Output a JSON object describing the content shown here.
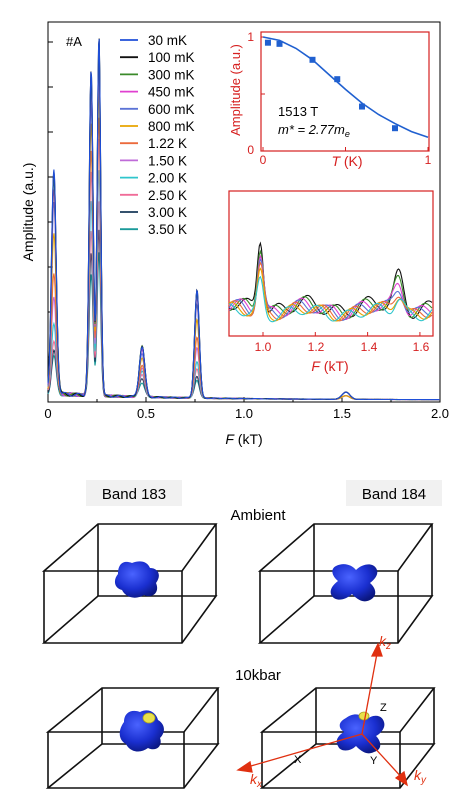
{
  "main_panel": {
    "sample_label": "#A",
    "xlabel_italic": "F",
    "xlabel_unit": " (kT)",
    "ylabel": "Amplitude (a.u.)",
    "x_ticks": [
      "0",
      "0.5",
      "1.0",
      "1.5",
      "2.0"
    ],
    "legend": [
      {
        "label": "30 mK",
        "color": "#1f4fd8"
      },
      {
        "label": "100 mK",
        "color": "#111111"
      },
      {
        "label": "300 mK",
        "color": "#3a8a2a"
      },
      {
        "label": "450 mK",
        "color": "#e040d0"
      },
      {
        "label": "600 mK",
        "color": "#5c73d6"
      },
      {
        "label": "800 mK",
        "color": "#e8a400"
      },
      {
        "label": "1.22 K",
        "color": "#ec6a3c"
      },
      {
        "label": "1.50 K",
        "color": "#bf6bd8"
      },
      {
        "label": "2.00 K",
        "color": "#2fc6cc"
      },
      {
        "label": "2.50 K",
        "color": "#f06c98"
      },
      {
        "label": "3.00 K",
        "color": "#183a5a"
      },
      {
        "label": "3.50 K",
        "color": "#1a9a9a"
      }
    ]
  },
  "inset_top": {
    "ylabel": "Amplitude (a.u.)",
    "xlabel_italic": "T",
    "xlabel_unit": " (K)",
    "x_ticks": [
      "0",
      "1"
    ],
    "y_ticks": [
      "0",
      "1"
    ],
    "freq_label": "1513 T",
    "mass_label_prefix": "m* = 2.77m",
    "mass_label_sub": "e",
    "frame_color": "#d62020",
    "point_color": "#2060d0"
  },
  "inset_bottom": {
    "xlabel_italic": "F",
    "xlabel_unit": " (kT)",
    "x_ticks": [
      "1.0",
      "1.2",
      "1.4",
      "1.6"
    ]
  },
  "bands": {
    "band_left_label": "Band 183",
    "band_right_label": "Band 184",
    "ambient_label": "Ambient",
    "pressure_label": "10kbar",
    "axis_kz": "k",
    "axis_kz_sub": "z",
    "axis_kx": "k",
    "axis_kx_sub": "x",
    "axis_ky": "k",
    "axis_ky_sub": "y",
    "point_x": "X",
    "point_y": "Y",
    "point_z": "Z",
    "surface_color": "#1a2fd0",
    "arrow_color": "#e03010"
  },
  "chart_data": [
    {
      "type": "line",
      "xlabel": "F (kT)",
      "ylabel": "Amplitude (a.u.)",
      "xlim": [
        0,
        2.0
      ],
      "x": [
        0.03,
        0.22,
        0.26,
        0.48,
        0.76,
        1.52
      ],
      "series": [
        {
          "name": "30 mK",
          "values": [
            0.62,
            0.9,
            1.0,
            0.14,
            0.3,
            0.02
          ]
        },
        {
          "name": "100 mK",
          "values": [
            0.62,
            0.9,
            1.0,
            0.14,
            0.3,
            0.02
          ]
        },
        {
          "name": "300 mK",
          "values": [
            0.6,
            0.88,
            0.98,
            0.14,
            0.29,
            0.02
          ]
        },
        {
          "name": "450 mK",
          "values": [
            0.57,
            0.86,
            0.95,
            0.13,
            0.28,
            0.02
          ]
        },
        {
          "name": "600 mK",
          "values": [
            0.53,
            0.82,
            0.92,
            0.12,
            0.26,
            0.02
          ]
        },
        {
          "name": "800 mK",
          "values": [
            0.44,
            0.76,
            0.86,
            0.11,
            0.22,
            0.01
          ]
        },
        {
          "name": "1.22 K",
          "values": [
            0.33,
            0.68,
            0.78,
            0.09,
            0.17,
            0.01
          ]
        },
        {
          "name": "1.50 K",
          "values": [
            0.27,
            0.62,
            0.72,
            0.08,
            0.14,
            0.01
          ]
        },
        {
          "name": "2.00 K",
          "values": [
            0.2,
            0.54,
            0.63,
            0.07,
            0.1,
            0.01
          ]
        },
        {
          "name": "2.50 K",
          "values": [
            0.15,
            0.46,
            0.54,
            0.06,
            0.08,
            0.01
          ]
        },
        {
          "name": "3.00 K",
          "values": [
            0.12,
            0.4,
            0.46,
            0.05,
            0.06,
            0.01
          ]
        },
        {
          "name": "3.50 K",
          "values": [
            0.1,
            0.34,
            0.4,
            0.04,
            0.05,
            0.01
          ]
        }
      ]
    },
    {
      "type": "scatter",
      "xlabel": "T (K)",
      "ylabel": "Amplitude (a.u.)",
      "xlim": [
        0,
        1
      ],
      "ylim": [
        0,
        1
      ],
      "x": [
        0.03,
        0.1,
        0.3,
        0.45,
        0.6,
        0.8
      ],
      "values": [
        0.95,
        0.94,
        0.8,
        0.63,
        0.39,
        0.2
      ],
      "fit": {
        "x": [
          0,
          0.1,
          0.2,
          0.3,
          0.4,
          0.5,
          0.6,
          0.7,
          0.8,
          0.9,
          1.0
        ],
        "values": [
          1.0,
          0.97,
          0.9,
          0.8,
          0.67,
          0.54,
          0.42,
          0.32,
          0.24,
          0.17,
          0.12
        ]
      }
    },
    {
      "type": "line",
      "xlabel": "F (kT)",
      "xlim": [
        0.87,
        1.65
      ],
      "x": [
        0.99,
        1.52
      ],
      "series": [
        {
          "name": "30 mK",
          "values": [
            1.0,
            0.3
          ]
        },
        {
          "name": "800 mK",
          "values": [
            0.72,
            0.18
          ]
        },
        {
          "name": "1.50 K",
          "values": [
            0.55,
            0.12
          ]
        },
        {
          "name": "3.50 K",
          "values": [
            0.38,
            0.07
          ]
        }
      ]
    }
  ]
}
